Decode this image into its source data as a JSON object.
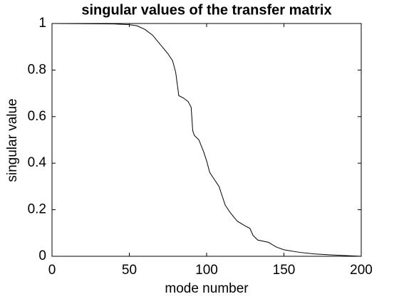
{
  "chart_data": {
    "type": "line",
    "title": "singular values of the transfer matrix",
    "x_label": "mode number",
    "y_label": "singular value",
    "x": [
      1,
      40,
      50,
      55,
      60,
      65,
      70,
      75,
      78,
      80,
      82,
      85,
      88,
      90,
      91,
      92,
      95,
      98,
      100,
      102,
      105,
      108,
      110,
      112,
      115,
      118,
      120,
      125,
      128,
      130,
      133,
      140,
      145,
      150,
      160,
      170,
      180,
      190,
      200
    ],
    "series": [
      {
        "name": "singular value",
        "color": "#000000",
        "values": [
          1.0,
          0.998,
          0.995,
          0.99,
          0.975,
          0.95,
          0.91,
          0.87,
          0.84,
          0.79,
          0.69,
          0.68,
          0.665,
          0.64,
          0.54,
          0.52,
          0.5,
          0.45,
          0.41,
          0.36,
          0.33,
          0.3,
          0.26,
          0.22,
          0.19,
          0.165,
          0.15,
          0.13,
          0.12,
          0.09,
          0.07,
          0.06,
          0.04,
          0.028,
          0.017,
          0.01,
          0.006,
          0.003,
          0.0
        ]
      }
    ],
    "xlim": [
      0,
      200
    ],
    "xticks": [
      0,
      50,
      100,
      150,
      200
    ],
    "ylim": [
      0,
      1
    ],
    "yticks": [
      0,
      0.2,
      0.4,
      0.6,
      0.8,
      1
    ],
    "grid": false
  }
}
